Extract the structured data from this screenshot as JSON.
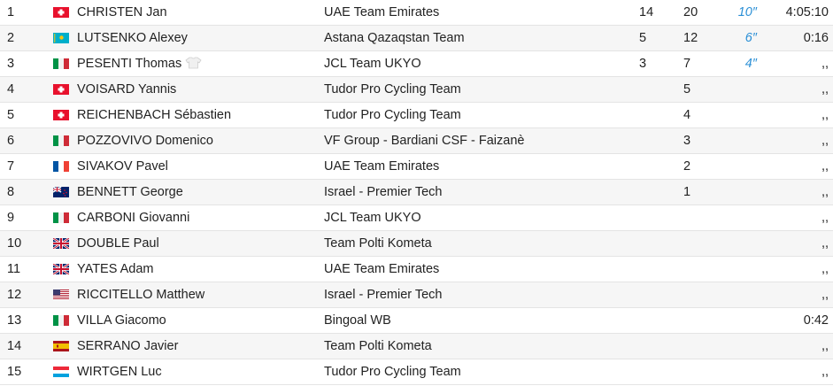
{
  "rows": [
    {
      "rank": "1",
      "flag": "ch",
      "rider": "CHRISTEN Jan",
      "team": "UAE Team Emirates",
      "uci": "14",
      "pnt": "20",
      "bonis": "10″",
      "time": "4:05:10",
      "jersey": false
    },
    {
      "rank": "2",
      "flag": "kz",
      "rider": "LUTSENKO Alexey",
      "team": "Astana Qazaqstan Team",
      "uci": "5",
      "pnt": "12",
      "bonis": "6″",
      "time": "0:16",
      "jersey": false
    },
    {
      "rank": "3",
      "flag": "it",
      "rider": "PESENTI Thomas",
      "team": "JCL Team UKYO",
      "uci": "3",
      "pnt": "7",
      "bonis": "4″",
      "time": ",,",
      "jersey": true
    },
    {
      "rank": "4",
      "flag": "ch",
      "rider": "VOISARD Yannis",
      "team": "Tudor Pro Cycling Team",
      "uci": "",
      "pnt": "5",
      "bonis": "",
      "time": ",,",
      "jersey": false
    },
    {
      "rank": "5",
      "flag": "ch",
      "rider": "REICHENBACH Sébastien",
      "team": "Tudor Pro Cycling Team",
      "uci": "",
      "pnt": "4",
      "bonis": "",
      "time": ",,",
      "jersey": false
    },
    {
      "rank": "6",
      "flag": "it",
      "rider": "POZZOVIVO Domenico",
      "team": "VF Group - Bardiani CSF - Faizanè",
      "uci": "",
      "pnt": "3",
      "bonis": "",
      "time": ",,",
      "jersey": false
    },
    {
      "rank": "7",
      "flag": "fr",
      "rider": "SIVAKOV Pavel",
      "team": "UAE Team Emirates",
      "uci": "",
      "pnt": "2",
      "bonis": "",
      "time": ",,",
      "jersey": false
    },
    {
      "rank": "8",
      "flag": "nz",
      "rider": "BENNETT George",
      "team": "Israel - Premier Tech",
      "uci": "",
      "pnt": "1",
      "bonis": "",
      "time": ",,",
      "jersey": false
    },
    {
      "rank": "9",
      "flag": "it",
      "rider": "CARBONI Giovanni",
      "team": "JCL Team UKYO",
      "uci": "",
      "pnt": "",
      "bonis": "",
      "time": ",,",
      "jersey": false
    },
    {
      "rank": "10",
      "flag": "gb",
      "rider": "DOUBLE Paul",
      "team": "Team Polti Kometa",
      "uci": "",
      "pnt": "",
      "bonis": "",
      "time": ",,",
      "jersey": false
    },
    {
      "rank": "11",
      "flag": "gb",
      "rider": "YATES Adam",
      "team": "UAE Team Emirates",
      "uci": "",
      "pnt": "",
      "bonis": "",
      "time": ",,",
      "jersey": false
    },
    {
      "rank": "12",
      "flag": "us",
      "rider": "RICCITELLO Matthew",
      "team": "Israel - Premier Tech",
      "uci": "",
      "pnt": "",
      "bonis": "",
      "time": ",,",
      "jersey": false
    },
    {
      "rank": "13",
      "flag": "it",
      "rider": "VILLA Giacomo",
      "team": "Bingoal WB",
      "uci": "",
      "pnt": "",
      "bonis": "",
      "time": "0:42",
      "jersey": false
    },
    {
      "rank": "14",
      "flag": "es",
      "rider": "SERRANO Javier",
      "team": "Team Polti Kometa",
      "uci": "",
      "pnt": "",
      "bonis": "",
      "time": ",,",
      "jersey": false
    },
    {
      "rank": "15",
      "flag": "lu",
      "rider": "WIRTGEN Luc",
      "team": "Tudor Pro Cycling Team",
      "uci": "",
      "pnt": "",
      "bonis": "",
      "time": ",,",
      "jersey": false
    }
  ],
  "colors": {
    "bonus": "#2a8fd6",
    "row_alt": "#f6f6f6",
    "border": "#e4e4e4"
  }
}
